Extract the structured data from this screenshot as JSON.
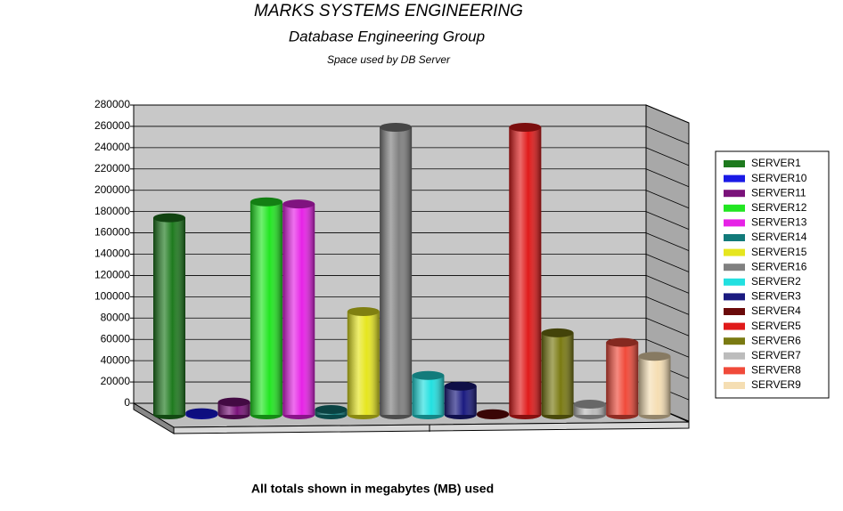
{
  "chart_data": {
    "type": "bar3d",
    "title": "MARKS SYSTEMS ENGINEERING",
    "subtitle": "Database Engineering Group",
    "caption": "Space used by DB Server",
    "footer": "All totals shown in megabytes (MB) used",
    "ylim": [
      0,
      280000
    ],
    "yticks": [
      0,
      20000,
      40000,
      60000,
      80000,
      100000,
      120000,
      140000,
      160000,
      180000,
      200000,
      220000,
      240000,
      260000,
      280000
    ],
    "grid": true,
    "legend": "right",
    "series": [
      {
        "name": "SERVER1",
        "color": "#1e7a1e",
        "values": [
          185000
        ]
      },
      {
        "name": "SERVER10",
        "color": "#1a1ae6",
        "values": [
          2000
        ]
      },
      {
        "name": "SERVER11",
        "color": "#7a127a",
        "values": [
          12000
        ]
      },
      {
        "name": "SERVER12",
        "color": "#22e622",
        "values": [
          200000
        ]
      },
      {
        "name": "SERVER13",
        "color": "#e622e6",
        "values": [
          198000
        ]
      },
      {
        "name": "SERVER14",
        "color": "#127a7a",
        "values": [
          5000
        ]
      },
      {
        "name": "SERVER15",
        "color": "#e6e61e",
        "values": [
          97000
        ]
      },
      {
        "name": "SERVER16",
        "color": "#808080",
        "values": [
          270000
        ]
      },
      {
        "name": "SERVER2",
        "color": "#22e0e0",
        "values": [
          37000
        ]
      },
      {
        "name": "SERVER3",
        "color": "#1a1a80",
        "values": [
          27000
        ]
      },
      {
        "name": "SERVER4",
        "color": "#6a0a0a",
        "values": [
          1000
        ]
      },
      {
        "name": "SERVER5",
        "color": "#e01a1a",
        "values": [
          270000
        ]
      },
      {
        "name": "SERVER6",
        "color": "#7a7a12",
        "values": [
          77000
        ]
      },
      {
        "name": "SERVER7",
        "color": "#bcbcbc",
        "values": [
          10000
        ]
      },
      {
        "name": "SERVER8",
        "color": "#f04a3a",
        "values": [
          68000
        ]
      },
      {
        "name": "SERVER9",
        "color": "#f5deb3",
        "values": [
          55000
        ]
      }
    ]
  }
}
